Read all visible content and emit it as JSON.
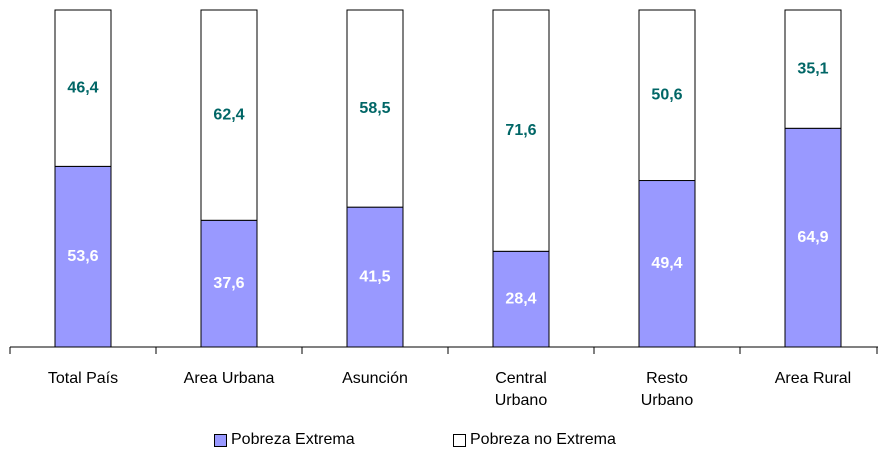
{
  "chart_data": {
    "type": "stacked_bar",
    "categories": [
      "Total País",
      "Area Urbana",
      "Asunción",
      "Central\nUrbano",
      "Resto\nUrbano",
      "Area Rural"
    ],
    "series": [
      {
        "name": "Pobreza Extrema",
        "color": "#9999ff",
        "label_color": "#ffffff",
        "values": [
          53.6,
          37.6,
          41.5,
          28.4,
          49.4,
          64.9
        ],
        "value_labels": [
          "53,6",
          "37,6",
          "41,5",
          "28,4",
          "49,4",
          "64,9"
        ]
      },
      {
        "name": "Pobreza no Extrema",
        "color": "#ffffff",
        "label_color": "#006666",
        "values": [
          46.4,
          62.4,
          58.5,
          71.6,
          50.6,
          35.1
        ],
        "value_labels": [
          "46,4",
          "62,4",
          "58,5",
          "71,6",
          "50,6",
          "35,1"
        ]
      }
    ],
    "ylim": [
      0,
      100
    ]
  }
}
